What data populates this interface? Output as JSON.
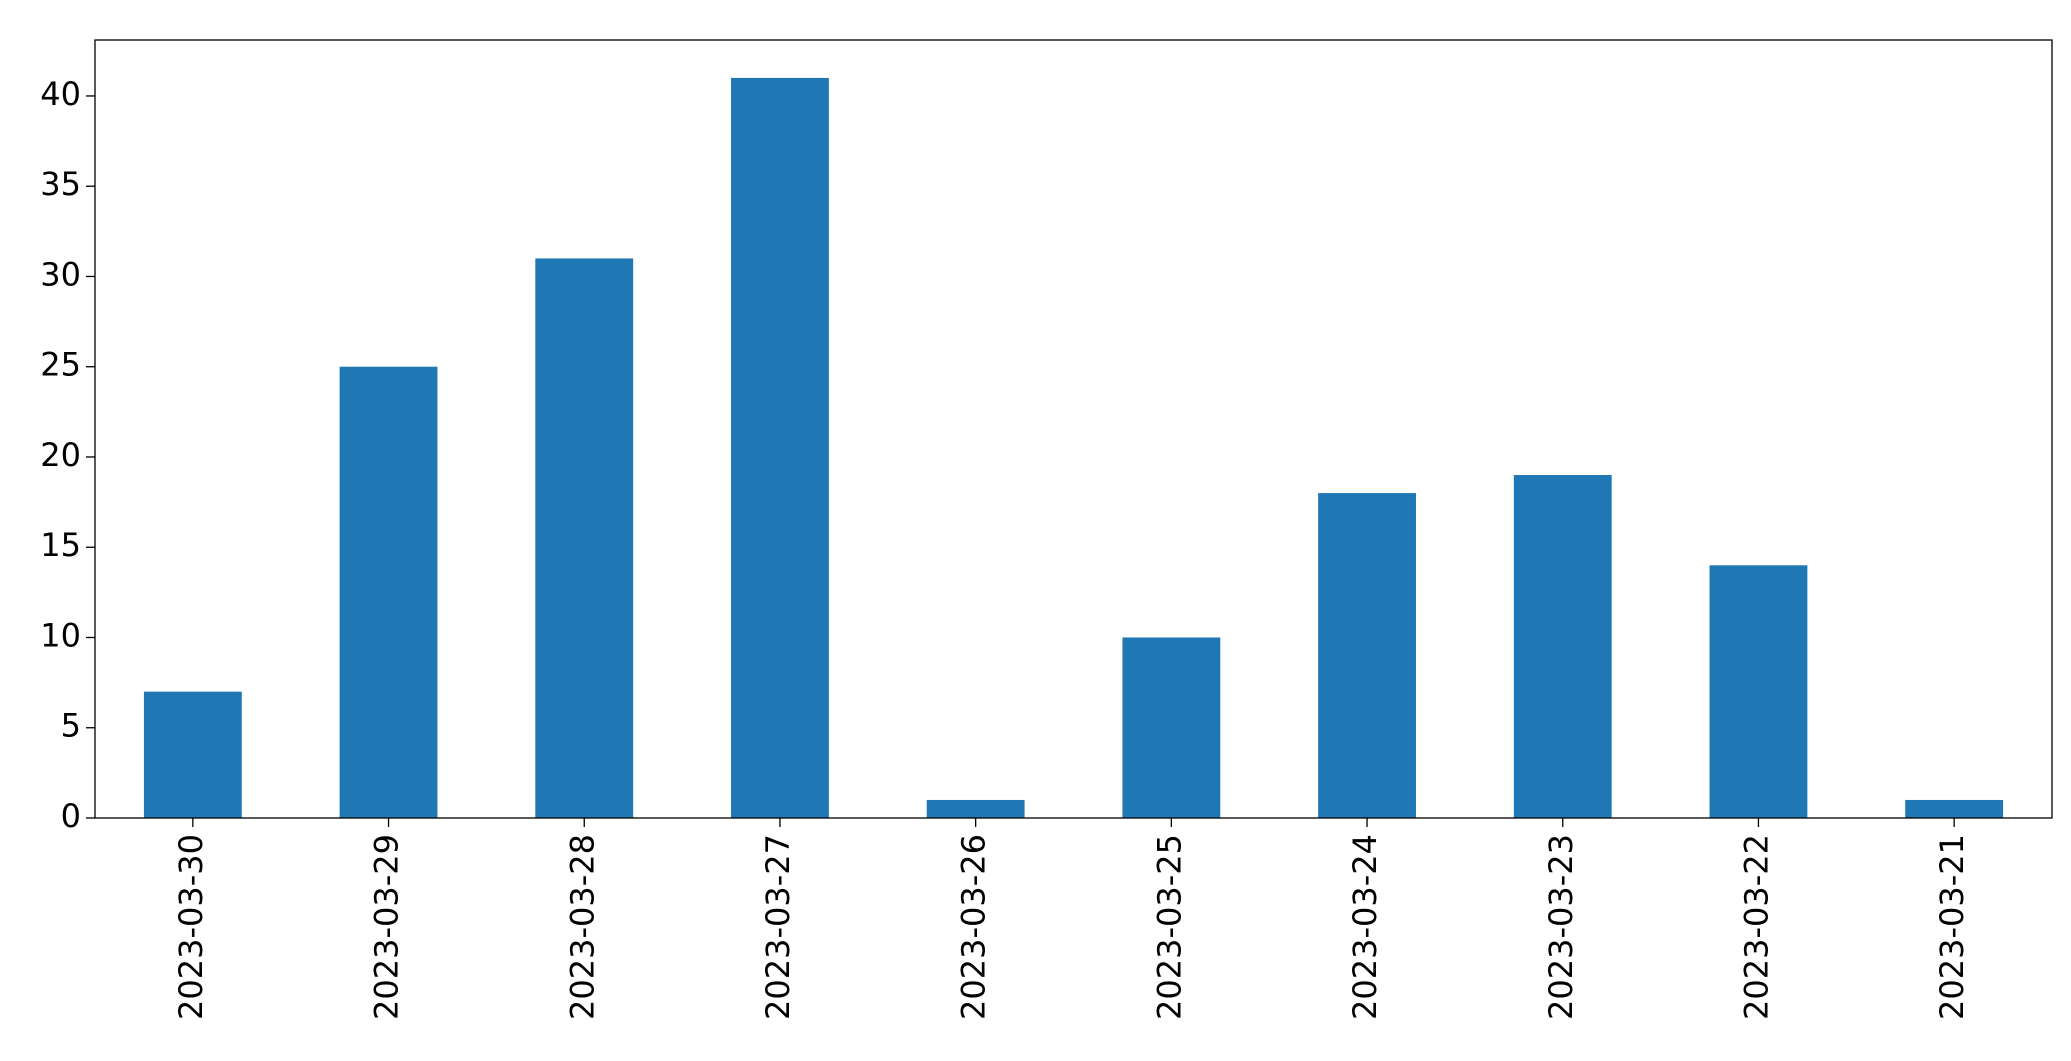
{
  "chart_data": {
    "type": "bar",
    "categories": [
      "2023-03-30",
      "2023-03-29",
      "2023-03-28",
      "2023-03-27",
      "2023-03-26",
      "2023-03-25",
      "2023-03-24",
      "2023-03-23",
      "2023-03-22",
      "2023-03-21"
    ],
    "values": [
      7,
      25,
      31,
      41,
      1,
      10,
      18,
      19,
      14,
      1
    ],
    "color": "#1f77b4",
    "ylim": [
      0,
      43.1
    ],
    "yticks": [
      0,
      5,
      10,
      15,
      20,
      25,
      30,
      35,
      40
    ],
    "grid": false
  }
}
